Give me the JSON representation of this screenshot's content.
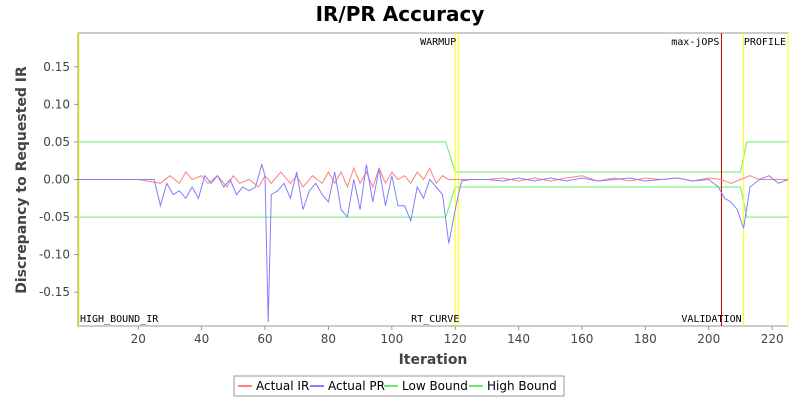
{
  "chart_data": {
    "type": "line",
    "title": "IR/PR Accuracy",
    "xlabel": "Iteration",
    "ylabel": "Discrepancy to Requested IR",
    "xlim": [
      1,
      225
    ],
    "ylim": [
      -0.195,
      0.195
    ],
    "xticks": [
      20,
      40,
      60,
      80,
      100,
      120,
      140,
      160,
      180,
      200,
      220
    ],
    "yticks": [
      -0.15,
      -0.1,
      -0.05,
      0.0,
      0.05,
      0.1,
      0.15
    ],
    "ytick_labels": [
      "-0.15",
      "-0.10",
      "-0.05",
      "0.00",
      "0.05",
      "0.10",
      "0.15"
    ],
    "grid": false,
    "legend_position": "bottom",
    "markers": [
      {
        "label": "WARMUP",
        "x": 120,
        "color": "#ffff00",
        "label_pos": "top"
      },
      {
        "label": "RT_CURVE",
        "x": 121,
        "color": "#ffff00",
        "label_pos": "bottom"
      },
      {
        "label": "max-jOPS",
        "x": 204,
        "color": "#c00000",
        "label_pos": "top"
      },
      {
        "label": "VALIDATION",
        "x": 211,
        "color": "#ffff00",
        "label_pos": "bottom"
      },
      {
        "label": "PROFILE",
        "x": 225,
        "color": "#ffff00",
        "label_pos": "top"
      },
      {
        "label": "HIGH_BOUND_IR",
        "x": 1,
        "color": "#ffff00",
        "label_pos": "bottom"
      }
    ],
    "series": [
      {
        "name": "Actual IR",
        "color": "#ff8080",
        "x": [
          1,
          20,
          27,
          30,
          33,
          35,
          37,
          40,
          42,
          45,
          48,
          50,
          52,
          55,
          58,
          60,
          62,
          65,
          68,
          70,
          72,
          75,
          78,
          80,
          82,
          84,
          86,
          88,
          90,
          92,
          94,
          96,
          98,
          100,
          102,
          104,
          106,
          108,
          110,
          112,
          114,
          116,
          118,
          120,
          125,
          130,
          135,
          140,
          145,
          150,
          155,
          160,
          165,
          170,
          175,
          180,
          185,
          190,
          195,
          200,
          204,
          207,
          210,
          213,
          216,
          219,
          222,
          225
        ],
        "y": [
          0,
          0,
          -0.005,
          0.005,
          -0.005,
          0.01,
          0.0,
          0.005,
          -0.005,
          0.005,
          -0.01,
          0.005,
          -0.005,
          0.0,
          -0.01,
          0.005,
          -0.005,
          0.01,
          -0.005,
          0.005,
          -0.01,
          0.005,
          -0.005,
          0.01,
          -0.005,
          0.01,
          -0.01,
          0.015,
          -0.005,
          0.01,
          -0.01,
          0.015,
          -0.005,
          0.01,
          0.0,
          0.005,
          -0.005,
          0.01,
          0.0,
          0.015,
          -0.005,
          0.005,
          0.0,
          0.0,
          0.0,
          0.0,
          0.002,
          -0.002,
          0.002,
          -0.002,
          0.002,
          0.005,
          -0.002,
          0.002,
          -0.002,
          0.002,
          0.0,
          0.002,
          -0.002,
          0.002,
          0.0,
          -0.005,
          0.0,
          0.005,
          0.0,
          0.0,
          0.0,
          0.0
        ]
      },
      {
        "name": "Actual PR",
        "color": "#8080ff",
        "x": [
          1,
          20,
          25,
          27,
          29,
          31,
          33,
          35,
          37,
          39,
          41,
          43,
          45,
          47,
          49,
          51,
          53,
          55,
          57,
          59,
          60,
          61,
          62,
          64,
          66,
          68,
          70,
          72,
          74,
          76,
          78,
          80,
          82,
          84,
          86,
          88,
          90,
          92,
          94,
          96,
          98,
          100,
          102,
          104,
          106,
          108,
          110,
          112,
          114,
          116,
          118,
          120,
          122,
          125,
          130,
          135,
          140,
          145,
          150,
          155,
          160,
          165,
          170,
          175,
          180,
          185,
          190,
          195,
          200,
          203,
          205,
          207,
          209,
          211,
          213,
          216,
          219,
          222,
          225
        ],
        "y": [
          0,
          0,
          0,
          -0.035,
          -0.005,
          -0.02,
          -0.015,
          -0.025,
          -0.01,
          -0.025,
          0.005,
          -0.005,
          0.005,
          -0.01,
          0.0,
          -0.02,
          -0.01,
          -0.015,
          -0.01,
          0.02,
          0.005,
          -0.19,
          -0.02,
          -0.015,
          -0.005,
          -0.025,
          0.01,
          -0.04,
          -0.015,
          -0.005,
          -0.02,
          -0.03,
          0.01,
          -0.04,
          -0.05,
          0.0,
          -0.04,
          0.02,
          -0.03,
          0.015,
          -0.035,
          0.005,
          -0.035,
          -0.035,
          -0.055,
          -0.01,
          -0.025,
          0.0,
          -0.01,
          -0.02,
          -0.085,
          -0.04,
          -0.002,
          0.0,
          0.0,
          -0.002,
          0.002,
          -0.002,
          0.002,
          -0.002,
          0.002,
          -0.002,
          0.0,
          0.002,
          -0.002,
          0.0,
          0.002,
          -0.002,
          0.0,
          -0.01,
          -0.025,
          -0.03,
          -0.04,
          -0.065,
          -0.01,
          0.0,
          0.005,
          -0.005,
          0.0
        ]
      },
      {
        "name": "Low Bound",
        "color": "#66ee66",
        "x": [
          1,
          117,
          120,
          121,
          210,
          212,
          225
        ],
        "y": [
          -0.05,
          -0.05,
          -0.01,
          -0.01,
          -0.01,
          -0.05,
          -0.05
        ]
      },
      {
        "name": "High Bound",
        "color": "#66ee66",
        "x": [
          1,
          117,
          120,
          121,
          210,
          212,
          225
        ],
        "y": [
          0.05,
          0.05,
          0.01,
          0.01,
          0.01,
          0.05,
          0.05
        ]
      }
    ]
  }
}
